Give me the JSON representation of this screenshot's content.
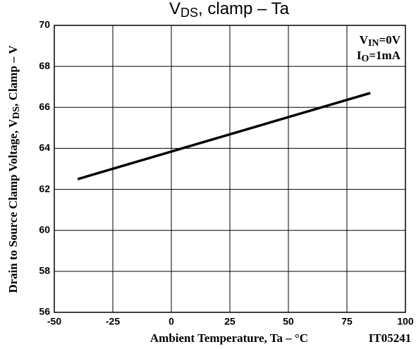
{
  "chart_data": {
    "type": "line",
    "title": {
      "main": "V",
      "sub": "DS",
      "rest": ", clamp  –  Ta"
    },
    "x_label": "Ambient Temperature, Ta  –  °C",
    "y_label": {
      "main": "Drain to Source Clamp Voltage, V",
      "sub": "DS",
      "rest": ", Clamp  –  V"
    },
    "annotations": [
      {
        "main": "V",
        "sub": "IN",
        "rest": "=0V"
      },
      {
        "main": "I",
        "sub": "O",
        "rest": "=1mA"
      }
    ],
    "figure_id": "IT05241",
    "x": [
      -40,
      85
    ],
    "series": [
      {
        "color": "#000000",
        "values": [
          62.5,
          66.7
        ]
      }
    ],
    "xlim": [
      -50,
      100
    ],
    "xticks": [
      -50,
      -25,
      0,
      25,
      50,
      75,
      100
    ],
    "ylim": [
      56,
      70
    ],
    "yticks": [
      56,
      58,
      60,
      62,
      64,
      66,
      68,
      70
    ],
    "grid": true
  }
}
